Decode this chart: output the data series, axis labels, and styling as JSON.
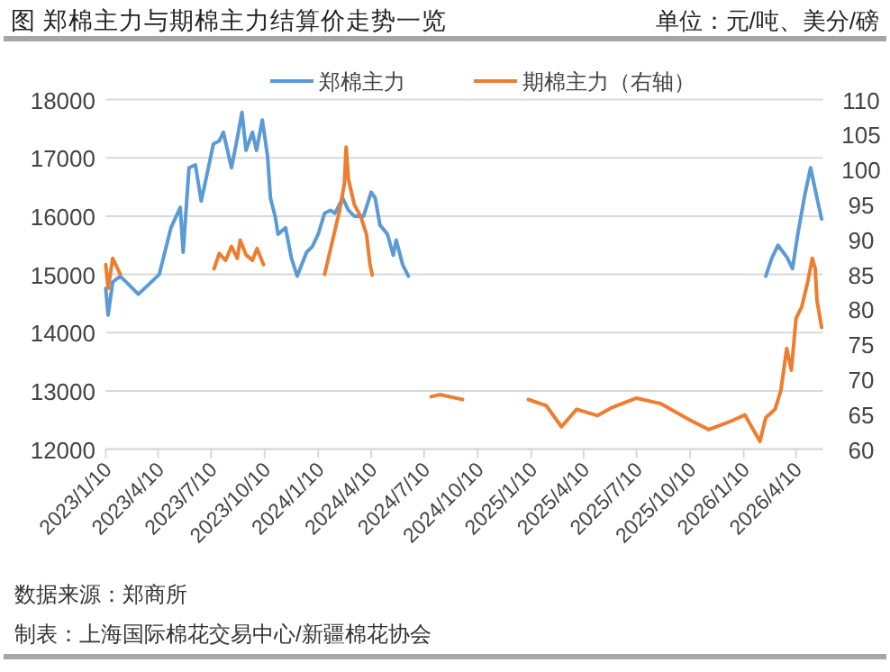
{
  "chart_data": {
    "type": "line",
    "title": "图 郑棉主力与期棉主力结算价走势一览",
    "annotations": [
      "单位：元/吨、美分/磅",
      "数据来源：郑商所",
      "制表：上海国际棉花交易中心/新疆棉花协会"
    ],
    "series": [
      {
        "name": "郑棉主力",
        "color": "#5b9bd5",
        "x": [
          "2023-01-10",
          "2023-01-14",
          "2023-01-22",
          "2023-02-04",
          "2023-03-07",
          "2023-04-12",
          "2023-05-02",
          "2023-05-18",
          "2023-05-23",
          "2023-06-02",
          "2023-06-13",
          "2023-06-23",
          "2023-07-03",
          "2023-07-14",
          "2023-07-24",
          "2023-07-31",
          "2023-08-14",
          "2023-08-24",
          "2023-09-01",
          "2023-09-08",
          "2023-09-19",
          "2023-09-26",
          "2023-10-06",
          "2023-10-15",
          "2023-10-20",
          "2023-10-28",
          "2023-11-02",
          "2023-11-15",
          "2023-11-25",
          "2023-12-05",
          "2023-12-21",
          "2023-12-31",
          "2024-01-10",
          "2024-01-21",
          "2024-01-31",
          "2024-02-08",
          "2024-02-21",
          "2024-03-02",
          "2024-03-12",
          "2024-03-28",
          "2024-04-10",
          "2024-04-17",
          "2024-04-25",
          "2024-05-08",
          "2024-05-18",
          "2024-05-23",
          "2024-06-03",
          "2024-06-13",
          "2025-09-01",
          "2026-02-17",
          "2026-02-27",
          "2026-03-10",
          "2026-03-25",
          "2026-04-04",
          "2026-04-13",
          "2026-04-25",
          "2026-05-05",
          "2026-05-16",
          "2026-05-24"
        ],
        "values": [
          14760,
          14300,
          14870,
          14970,
          14660,
          15000,
          15800,
          16150,
          15380,
          16830,
          16880,
          16260,
          16720,
          17240,
          17290,
          17440,
          16830,
          17340,
          17780,
          17130,
          17440,
          17130,
          17650,
          17030,
          16310,
          16000,
          15690,
          15800,
          15280,
          14970,
          15380,
          15480,
          15690,
          16050,
          16100,
          16050,
          16310,
          16100,
          16000,
          16000,
          16410,
          16310,
          15850,
          15690,
          15330,
          15590,
          15170,
          14970,
          null,
          14970,
          15270,
          15500,
          15300,
          15100,
          15690,
          16360,
          16830,
          16310,
          15950
        ]
      },
      {
        "name": "期棉主力（右轴）",
        "color": "#ed7d31",
        "axis": "y2",
        "x": [
          "2023-01-10",
          "2023-01-14",
          "2023-01-22",
          "2023-02-04",
          "2023-04-20",
          "2023-07-15",
          "2023-07-24",
          "2023-08-04",
          "2023-08-14",
          "2023-08-24",
          "2023-08-29",
          "2023-09-08",
          "2023-09-19",
          "2023-09-27",
          "2023-10-08",
          "2023-12-01",
          "2024-01-21",
          "2024-02-06",
          "2024-02-16",
          "2024-02-24",
          "2024-02-27",
          "2024-03-02",
          "2024-03-12",
          "2024-03-23",
          "2024-04-02",
          "2024-04-08",
          "2024-04-12",
          "2024-06-01",
          "2024-07-22",
          "2024-08-06",
          "2024-09-14",
          "2024-11-01",
          "2025-01-05",
          "2025-02-05",
          "2025-03-03",
          "2025-03-29",
          "2025-05-04",
          "2025-05-30",
          "2025-07-10",
          "2025-08-21",
          "2025-10-11",
          "2025-11-11",
          "2025-12-22",
          "2026-01-12",
          "2026-02-07",
          "2026-02-17",
          "2026-03-05",
          "2026-03-15",
          "2026-03-25",
          "2026-04-02",
          "2026-04-10",
          "2026-04-20",
          "2026-04-30",
          "2026-05-08",
          "2026-05-13",
          "2026-05-16",
          "2026-05-24"
        ],
        "values": [
          86.4,
          83,
          87.3,
          85,
          null,
          85.8,
          88,
          87,
          89,
          87.3,
          89.9,
          87.8,
          87,
          88.7,
          86.4,
          null,
          85,
          90.7,
          94.2,
          98,
          103.2,
          98.6,
          95,
          93.3,
          90.7,
          86.4,
          84.9,
          null,
          67.5,
          67.8,
          67.1,
          null,
          67.1,
          66.2,
          63.2,
          65.7,
          64.8,
          66,
          67.3,
          66.5,
          64.1,
          62.8,
          64.1,
          64.9,
          61.1,
          64.5,
          65.7,
          68.4,
          74.4,
          71.3,
          78.7,
          80.4,
          83.9,
          87.3,
          85.8,
          81.3,
          77.4
        ]
      }
    ],
    "xlim": [
      "2023-01-10",
      "2026-05-26"
    ],
    "xticks": [
      {
        "value": "2023-01-10",
        "label": "2023/1/10"
      },
      {
        "value": "2023-04-10",
        "label": "2023/4/10"
      },
      {
        "value": "2023-07-10",
        "label": "2023/7/10"
      },
      {
        "value": "2023-10-10",
        "label": "2023/10/10"
      },
      {
        "value": "2024-01-10",
        "label": "2024/1/10"
      },
      {
        "value": "2024-04-10",
        "label": "2024/4/10"
      },
      {
        "value": "2024-07-10",
        "label": "2024/7/10"
      },
      {
        "value": "2024-10-10",
        "label": "2024/10/10"
      },
      {
        "value": "2025-01-10",
        "label": "2025/1/10"
      },
      {
        "value": "2025-04-10",
        "label": "2025/4/10"
      },
      {
        "value": "2025-07-10",
        "label": "2025/7/10"
      },
      {
        "value": "2025-10-10",
        "label": "2025/10/10"
      },
      {
        "value": "2026-01-10",
        "label": "2026/1/10"
      },
      {
        "value": "2026-04-10",
        "label": "2026/4/10"
      }
    ],
    "ylim": [
      12000,
      18000
    ],
    "yticks": [
      12000,
      13000,
      14000,
      15000,
      16000,
      17000,
      18000
    ],
    "y2lim": [
      60,
      110
    ],
    "y2ticks": [
      60,
      65,
      70,
      75,
      80,
      85,
      90,
      95,
      100,
      105,
      110
    ],
    "grid": "y",
    "legend": "top",
    "line_style": "solid",
    "marker": "none"
  }
}
